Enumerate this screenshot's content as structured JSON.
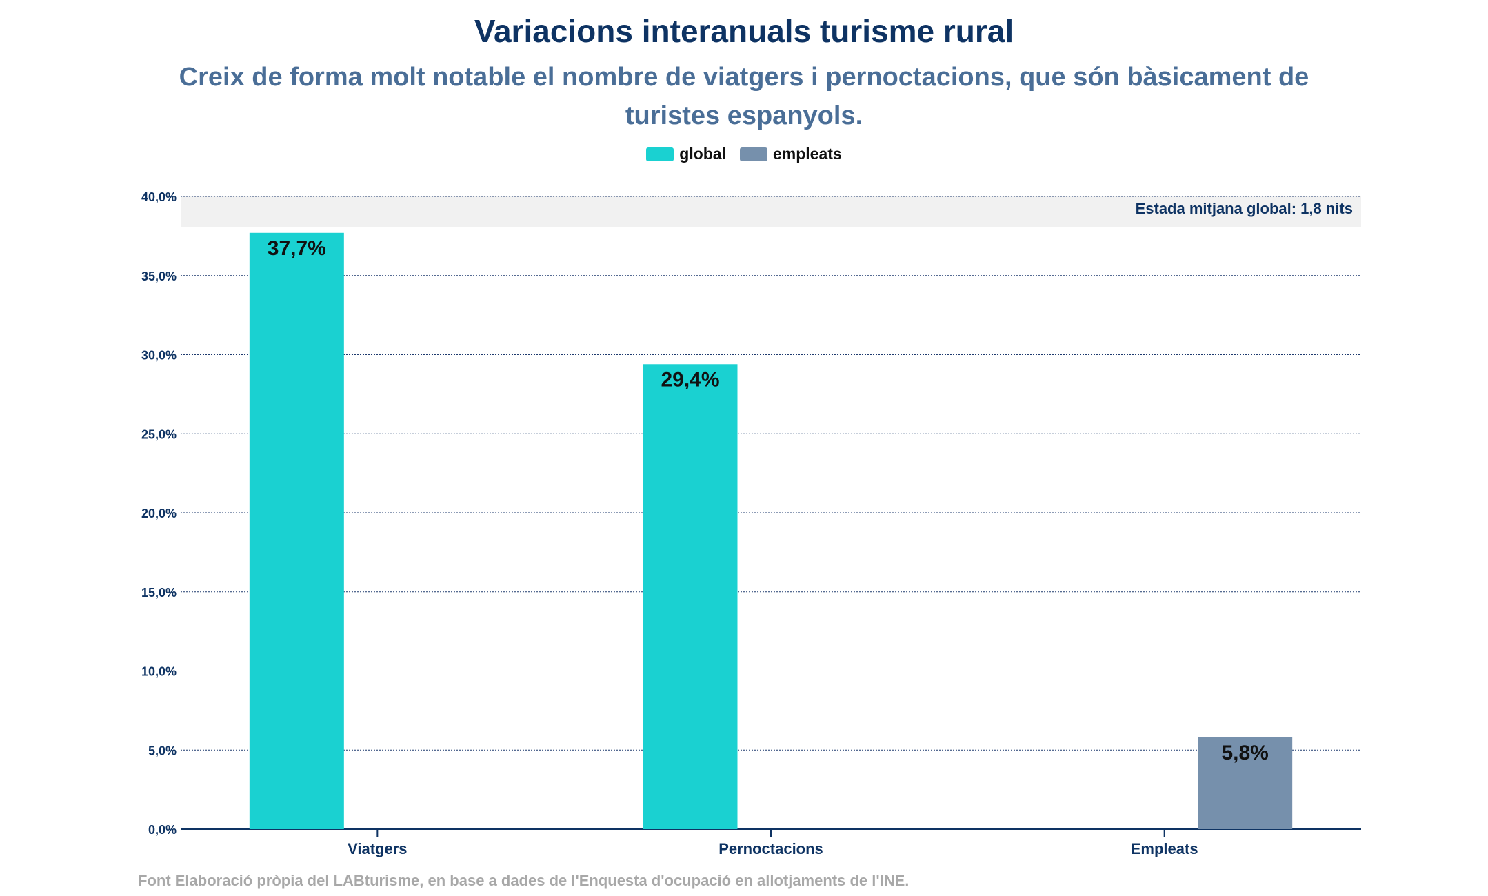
{
  "chart_data": {
    "type": "bar",
    "title": "Variacions interanuals turisme rural",
    "subtitle": "Creix de forma molt notable el nombre de viatgers i pernoctacions, que són bàsicament de turistes espanyols.",
    "categories": [
      "Viatgers",
      "Pernoctacions",
      "Empleats"
    ],
    "series": [
      {
        "name": "global",
        "values": [
          37.7,
          29.4,
          null
        ],
        "color": "#1ad1d1"
      },
      {
        "name": "empleats",
        "values": [
          null,
          null,
          5.8
        ],
        "color": "#7690ac"
      }
    ],
    "data_labels": [
      "37,7%",
      "29,4%",
      "5,8%"
    ],
    "ylim": [
      0,
      40
    ],
    "yticks": [
      0,
      5,
      10,
      15,
      20,
      25,
      30,
      35,
      40
    ],
    "ytick_labels": [
      "0,0%",
      "5,0%",
      "10,0%",
      "15,0%",
      "20,0%",
      "25,0%",
      "30,0%",
      "35,0%",
      "40,0%"
    ],
    "annotation": "Estada mitjana global: 1,8 nits",
    "legend_position": "top-center",
    "grid": true,
    "source": "Font Elaboració pròpia del LABturisme, en base a dades de l'Enquesta d'ocupació en allotjaments de l'INE."
  }
}
